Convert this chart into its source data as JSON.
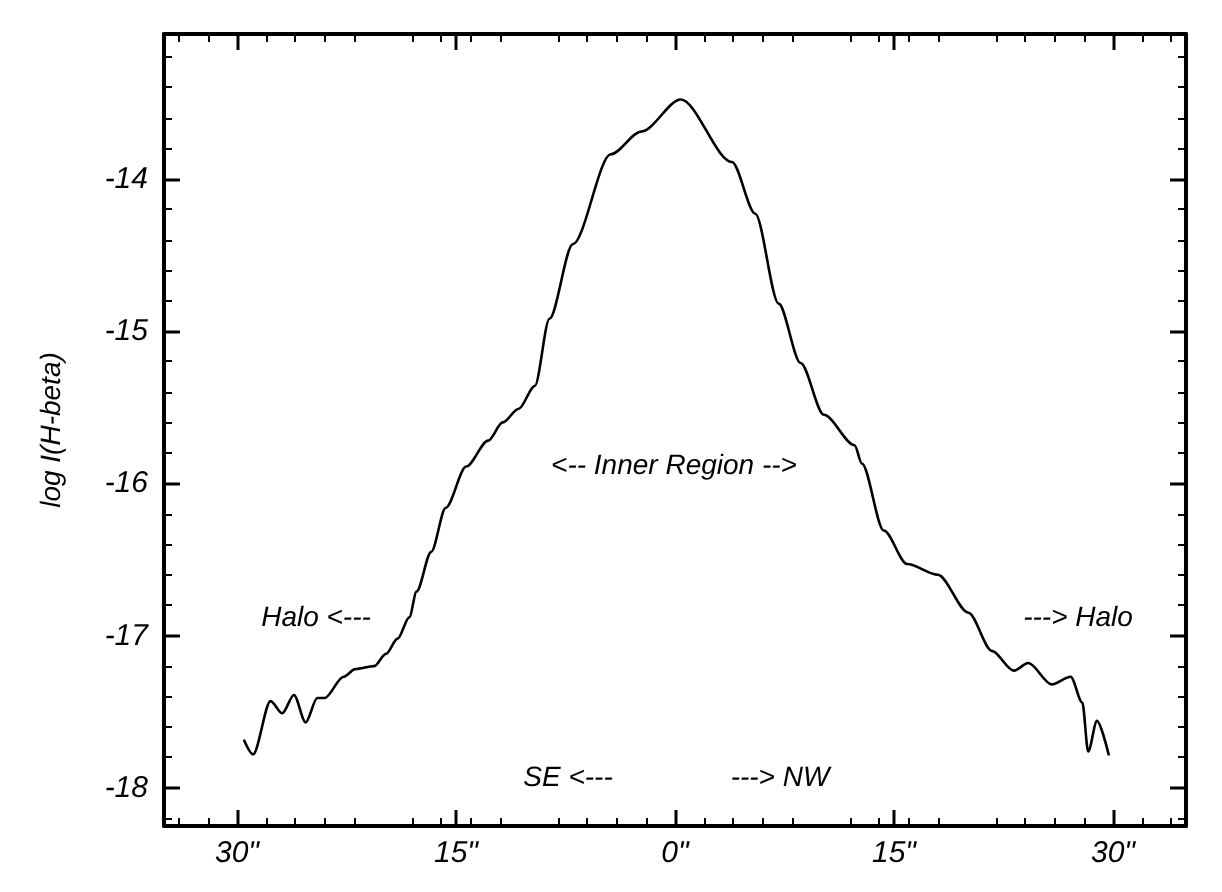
{
  "chart_data": {
    "type": "line",
    "ylabel": "log I(H-beta)",
    "xlim": [
      -35,
      35
    ],
    "ylim": [
      -18.25,
      -13.05
    ],
    "xticks": [
      {
        "value": -30,
        "label": "30\""
      },
      {
        "value": -15,
        "label": "15\""
      },
      {
        "value": 0,
        "label": "0\""
      },
      {
        "value": 15,
        "label": "15\""
      },
      {
        "value": 30,
        "label": "30\""
      }
    ],
    "yticks": [
      -18,
      -17,
      -16,
      -15,
      -14
    ],
    "grid": false,
    "marker": "none",
    "line_style": "solid",
    "series": [
      {
        "color": "#000000",
        "x": [
          -29.5,
          -28.9,
          -27.7,
          -26.9,
          -26.1,
          -25.3,
          -24.5,
          -24.0,
          -22.7,
          -21.9,
          -20.6,
          -19.8,
          -19.0,
          -18.2,
          -17.7,
          -16.7,
          -15.7,
          -14.3,
          -12.8,
          -11.8,
          -10.7,
          -9.6,
          -8.6,
          -7.0,
          -4.4,
          -2.3,
          0.4,
          3.9,
          5.5,
          7.1,
          8.6,
          10.2,
          12.3,
          12.8,
          14.3,
          15.9,
          18.0,
          20.1,
          21.7,
          23.2,
          24.2,
          25.8,
          27.1,
          27.9,
          28.3,
          28.9,
          29.7
        ],
        "values": [
          -17.69,
          -17.78,
          -17.43,
          -17.51,
          -17.39,
          -17.57,
          -17.41,
          -17.41,
          -17.27,
          -17.22,
          -17.2,
          -17.12,
          -17.02,
          -16.88,
          -16.71,
          -16.45,
          -16.16,
          -15.89,
          -15.72,
          -15.6,
          -15.51,
          -15.36,
          -14.92,
          -14.43,
          -13.84,
          -13.69,
          -13.48,
          -13.89,
          -14.23,
          -14.82,
          -15.21,
          -15.55,
          -15.75,
          -15.87,
          -16.31,
          -16.53,
          -16.6,
          -16.85,
          -17.1,
          -17.23,
          -17.18,
          -17.32,
          -17.27,
          -17.44,
          -17.76,
          -17.56,
          -17.78
        ]
      }
    ],
    "annotations": [
      "<-- Inner Region -->",
      "Halo <---",
      "---> Halo",
      "SE <---",
      "---> NW"
    ]
  }
}
